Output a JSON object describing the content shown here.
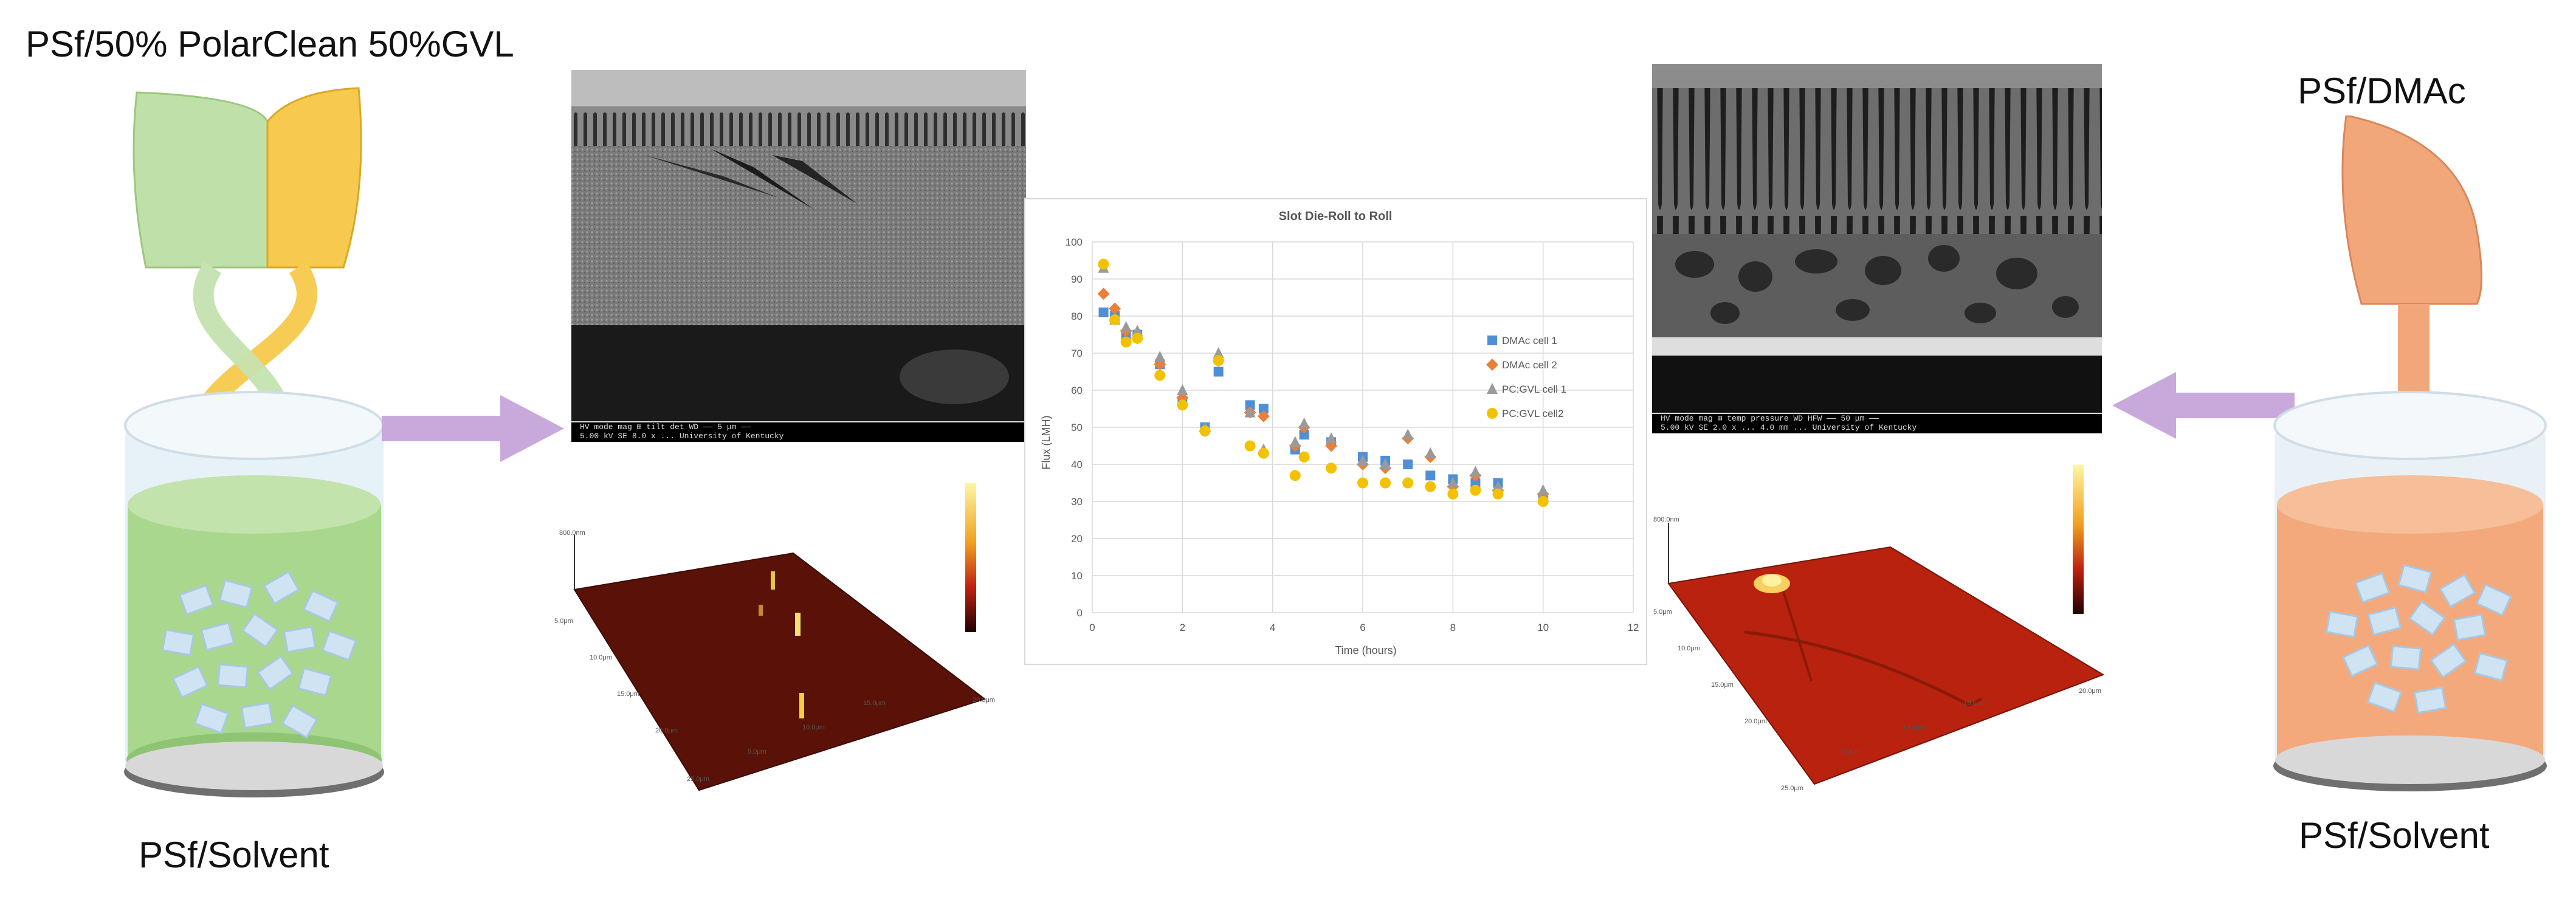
{
  "left": {
    "top_label": "PSf/50% PolarClean 50%GVL",
    "bottom_label": "PSf/Solvent",
    "colors": {
      "solution": "#a9d78e",
      "ink_a": "#bfe0a8",
      "ink_b": "#f7c94f"
    }
  },
  "right": {
    "top_label": "PSf/DMAc",
    "bottom_label": "PSf/Solvent",
    "colors": {
      "solution": "#f3a97c",
      "ink": "#f2a77b"
    }
  },
  "sem_left": {
    "bar_line1": "HV   mode  mag ⊞  tilt   det      WD              ——  5 μm  ——",
    "bar_line2": "5.00 kV  SE   8.0 x   ...           University of Kentucky"
  },
  "sem_right": {
    "bar_line1": "HV   mode  mag ⊞  temp  pressure   WD   HFW  ——  50 μm ——",
    "bar_line2": "5.00 kV  SE   2.0 x  ...  4.0 mm  ...   University of Kentucky"
  },
  "arrow_color": "#c9a9dc",
  "chart_data": {
    "type": "scatter",
    "title": "Slot Die-Roll to Roll",
    "xlabel": "Time (hours)",
    "ylabel": "Flux (LMH)",
    "xlim": [
      0,
      12
    ],
    "ylim": [
      0,
      100
    ],
    "xticks": [
      0,
      2,
      4,
      6,
      8,
      10,
      12
    ],
    "yticks": [
      0,
      10,
      20,
      30,
      40,
      50,
      60,
      70,
      80,
      90,
      100
    ],
    "grid": true,
    "legend_position": "right",
    "series": [
      {
        "name": "DMAc cell 1",
        "color": "#4f8fd6",
        "marker": "square",
        "x": [
          0.25,
          0.5,
          0.75,
          1,
          1.5,
          2,
          2.5,
          2.8,
          3.5,
          3.8,
          4.5,
          4.7,
          5.3,
          6,
          6.5,
          7,
          7.5,
          8,
          8.5,
          9,
          10
        ],
        "y": [
          81,
          80,
          75,
          75,
          67,
          57,
          50,
          65,
          56,
          55,
          44,
          48,
          46,
          42,
          41,
          40,
          37,
          36,
          35,
          35,
          31
        ]
      },
      {
        "name": "DMAc cell 2",
        "color": "#e8803a",
        "marker": "diamond",
        "x": [
          0.25,
          0.5,
          0.75,
          1,
          1.5,
          2,
          2.5,
          2.8,
          3.5,
          3.8,
          4.5,
          4.7,
          5.3,
          6,
          6.5,
          7,
          7.5,
          8,
          8.5,
          9,
          10
        ],
        "y": [
          86,
          82,
          76,
          74,
          67,
          58,
          49,
          68,
          54,
          53,
          45,
          50,
          45,
          40,
          39,
          47,
          42,
          34,
          37,
          33,
          32
        ]
      },
      {
        "name": "PC:GVL cell 1",
        "color": "#9a9a9a",
        "marker": "triangle",
        "x": [
          0.25,
          0.5,
          0.75,
          1,
          1.5,
          2,
          2.5,
          2.8,
          3.5,
          3.8,
          4.5,
          4.7,
          5.3,
          6,
          6.5,
          7,
          7.5,
          8,
          8.5,
          9,
          10
        ],
        "y": [
          93,
          79,
          77,
          76,
          69,
          60,
          50,
          70,
          54,
          44,
          46,
          51,
          47,
          41,
          40,
          48,
          43,
          35,
          38,
          34,
          33
        ]
      },
      {
        "name": "PC:GVL cell2",
        "color": "#f2c200",
        "marker": "circle",
        "x": [
          0.25,
          0.5,
          0.75,
          1,
          1.5,
          2,
          2.5,
          2.8,
          3.5,
          3.8,
          4.5,
          4.7,
          5.3,
          6,
          6.5,
          7,
          7.5,
          8,
          8.5,
          9,
          10
        ],
        "y": [
          94,
          79,
          73,
          74,
          64,
          56,
          49,
          68,
          45,
          43,
          37,
          42,
          39,
          35,
          35,
          35,
          34,
          32,
          33,
          32,
          30
        ]
      }
    ]
  }
}
